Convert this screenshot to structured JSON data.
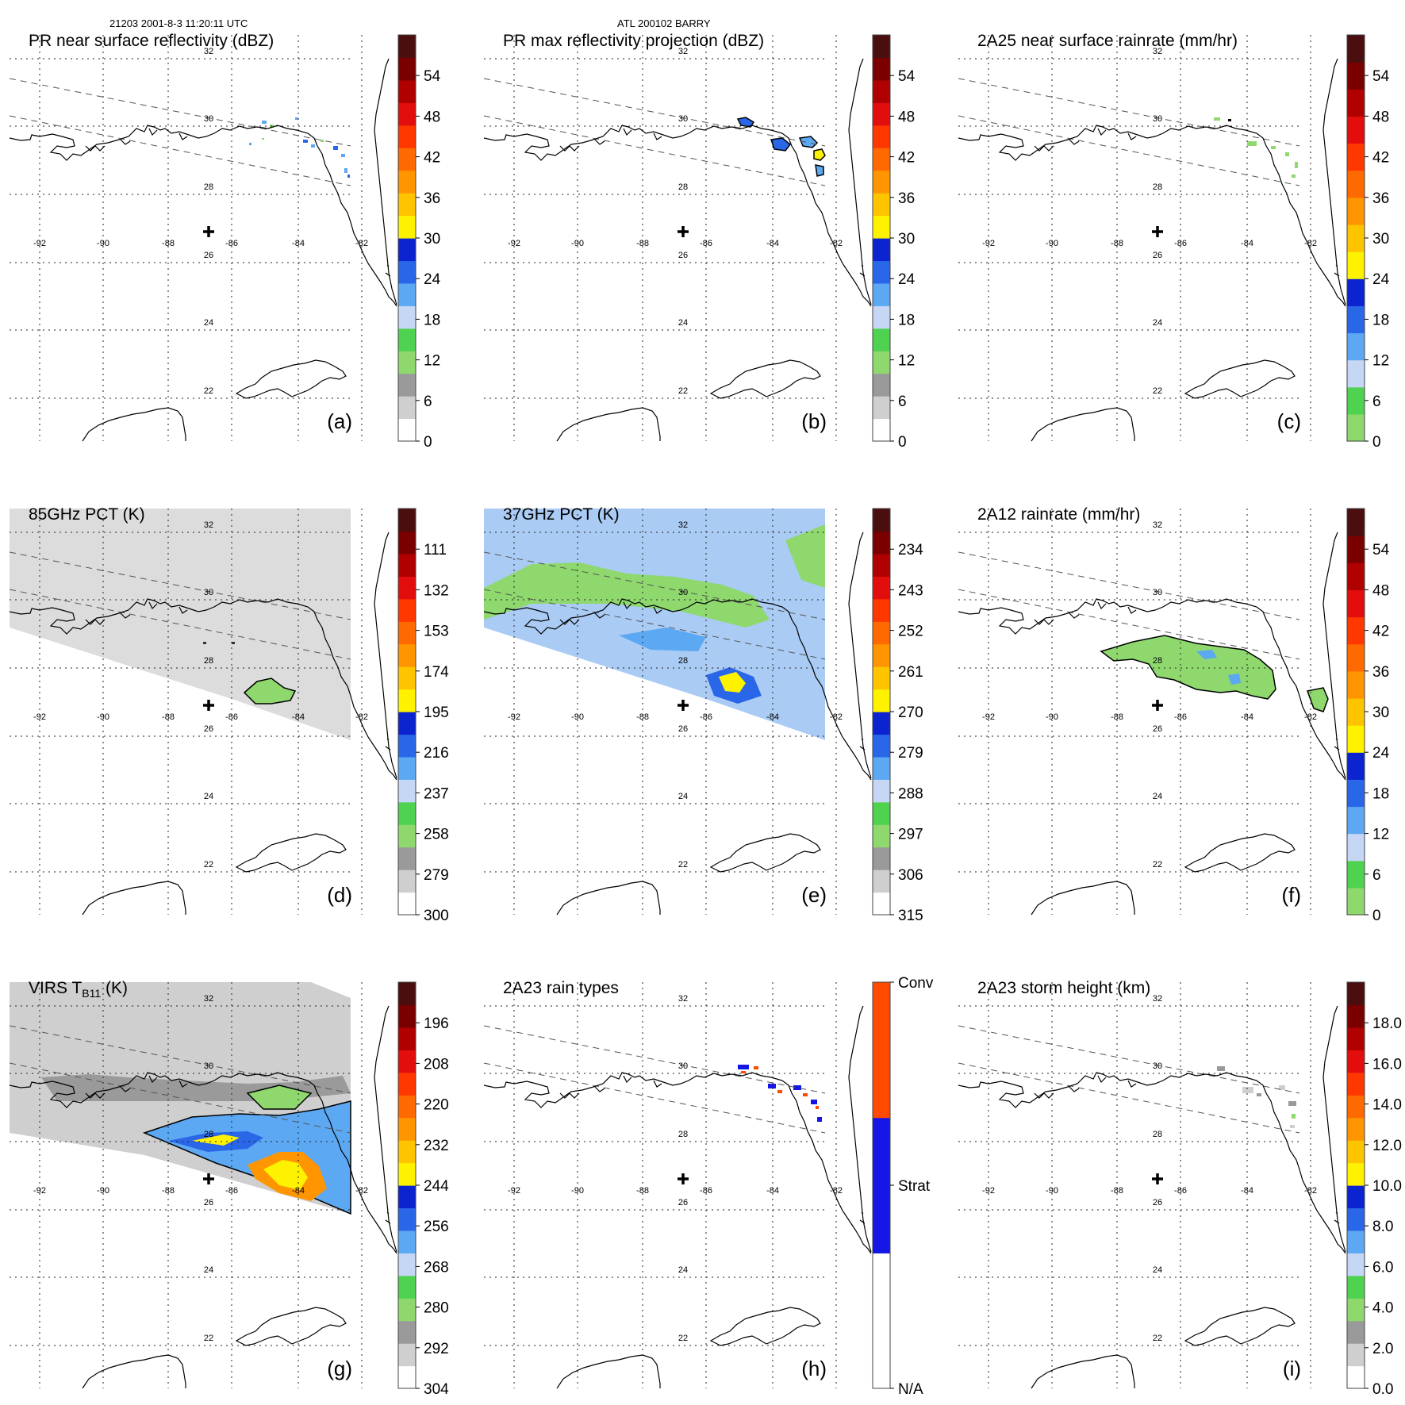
{
  "header": {
    "left": "21203 2001-8-3 11:20:11 UTC",
    "center": "ATL 200102 BARRY"
  },
  "map": {
    "lon_labels": [
      "-92",
      "-90",
      "-88",
      "-86",
      "-84",
      "-82"
    ],
    "lat_labels": [
      "32",
      "30",
      "28",
      "26",
      "24",
      "22"
    ]
  },
  "panels": [
    {
      "id": "a",
      "title": "PR near surface reflectivity (dBZ)",
      "letter": "(a)",
      "field": "pr-near",
      "colorbar": {
        "bands": [
          "#ffffff",
          "#cfcfcf",
          "#9a9a9a",
          "#8ed86e",
          "#4fd24f",
          "#c6d6f5",
          "#5da8f2",
          "#2a66e8",
          "#0b24cf",
          "#fff200",
          "#ffc400",
          "#ff9500",
          "#ff6a00",
          "#ff3800",
          "#e20e0e",
          "#b00000",
          "#7a0000",
          "#4a0e0e"
        ],
        "ticks": [
          "0",
          "6",
          "12",
          "18",
          "24",
          "30",
          "36",
          "42",
          "48",
          "54"
        ]
      }
    },
    {
      "id": "b",
      "title": "PR max reflectivity projection (dBZ)",
      "letter": "(b)",
      "field": "pr-max",
      "colorbar": {
        "bands": [
          "#ffffff",
          "#cfcfcf",
          "#9a9a9a",
          "#8ed86e",
          "#4fd24f",
          "#c6d6f5",
          "#5da8f2",
          "#2a66e8",
          "#0b24cf",
          "#fff200",
          "#ffc400",
          "#ff9500",
          "#ff6a00",
          "#ff3800",
          "#e20e0e",
          "#b00000",
          "#7a0000",
          "#4a0e0e"
        ],
        "ticks": [
          "0",
          "6",
          "12",
          "18",
          "24",
          "30",
          "36",
          "42",
          "48",
          "54"
        ]
      }
    },
    {
      "id": "c",
      "title": "2A25 near surface rainrate (mm/hr)",
      "letter": "(c)",
      "field": "rain25",
      "colorbar": {
        "bands": [
          "#8ed86e",
          "#4fd24f",
          "#c6d6f5",
          "#5da8f2",
          "#2a66e8",
          "#0b24cf",
          "#fff200",
          "#ffc400",
          "#ff9500",
          "#ff6a00",
          "#ff3800",
          "#e20e0e",
          "#b00000",
          "#7a0000",
          "#4a0e0e"
        ],
        "ticks": [
          "0",
          "6",
          "12",
          "18",
          "24",
          "30",
          "36",
          "42",
          "48",
          "54"
        ]
      }
    },
    {
      "id": "d",
      "title": "85GHz PCT (K)",
      "letter": "(d)",
      "field": "pct85",
      "colorbar": {
        "bands": [
          "#ffffff",
          "#cfcfcf",
          "#9a9a9a",
          "#8ed86e",
          "#4fd24f",
          "#c6d6f5",
          "#5da8f2",
          "#2a66e8",
          "#0b24cf",
          "#fff200",
          "#ffc400",
          "#ff9500",
          "#ff6a00",
          "#ff3800",
          "#e20e0e",
          "#b00000",
          "#7a0000",
          "#4a0e0e"
        ],
        "ticks": [
          "300",
          "279",
          "258",
          "237",
          "216",
          "195",
          "174",
          "153",
          "132",
          "111"
        ]
      }
    },
    {
      "id": "e",
      "title": "37GHz PCT (K)",
      "letter": "(e)",
      "field": "pct37",
      "colorbar": {
        "bands": [
          "#ffffff",
          "#cfcfcf",
          "#9a9a9a",
          "#8ed86e",
          "#4fd24f",
          "#c6d6f5",
          "#5da8f2",
          "#2a66e8",
          "#0b24cf",
          "#fff200",
          "#ffc400",
          "#ff9500",
          "#ff6a00",
          "#ff3800",
          "#e20e0e",
          "#b00000",
          "#7a0000",
          "#4a0e0e"
        ],
        "ticks": [
          "315",
          "306",
          "297",
          "288",
          "279",
          "270",
          "261",
          "252",
          "243",
          "234"
        ]
      }
    },
    {
      "id": "f",
      "title": "2A12 rainrate (mm/hr)",
      "letter": "(f)",
      "field": "rain12",
      "colorbar": {
        "bands": [
          "#8ed86e",
          "#4fd24f",
          "#c6d6f5",
          "#5da8f2",
          "#2a66e8",
          "#0b24cf",
          "#fff200",
          "#ffc400",
          "#ff9500",
          "#ff6a00",
          "#ff3800",
          "#e20e0e",
          "#b00000",
          "#7a0000",
          "#4a0e0e"
        ],
        "ticks": [
          "0",
          "6",
          "12",
          "18",
          "24",
          "30",
          "36",
          "42",
          "48",
          "54"
        ]
      }
    },
    {
      "id": "g",
      "title": "VIRS T",
      "title_sub": "B11",
      "title_tail": " (K)",
      "letter": "(g)",
      "field": "virs",
      "colorbar": {
        "bands": [
          "#ffffff",
          "#cfcfcf",
          "#9a9a9a",
          "#8ed86e",
          "#4fd24f",
          "#c6d6f5",
          "#5da8f2",
          "#2a66e8",
          "#0b24cf",
          "#fff200",
          "#ffc400",
          "#ff9500",
          "#ff6a00",
          "#ff3800",
          "#e20e0e",
          "#b00000",
          "#7a0000",
          "#4a0e0e"
        ],
        "ticks": [
          "304",
          "292",
          "280",
          "268",
          "256",
          "244",
          "232",
          "220",
          "208",
          "196"
        ]
      }
    },
    {
      "id": "h",
      "title": "2A23 rain types",
      "letter": "(h)",
      "field": "types",
      "colorbar": {
        "bands": [
          "#ffffff",
          "#1515e6",
          "#ff4a00"
        ],
        "ticks": [
          "N/A",
          "Strat",
          "Conv"
        ]
      }
    },
    {
      "id": "i",
      "title": "2A23 storm height (km)",
      "letter": "(i)",
      "field": "height",
      "colorbar": {
        "bands": [
          "#ffffff",
          "#cfcfcf",
          "#9a9a9a",
          "#8ed86e",
          "#4fd24f",
          "#c6d6f5",
          "#5da8f2",
          "#2a66e8",
          "#0b24cf",
          "#fff200",
          "#ffc400",
          "#ff9500",
          "#ff6a00",
          "#ff3800",
          "#e20e0e",
          "#b00000",
          "#7a0000",
          "#4a0e0e"
        ],
        "ticks": [
          "0.0",
          "2.0",
          "4.0",
          "6.0",
          "8.0",
          "10.0",
          "12.0",
          "14.0",
          "16.0",
          "18.0"
        ]
      }
    }
  ]
}
